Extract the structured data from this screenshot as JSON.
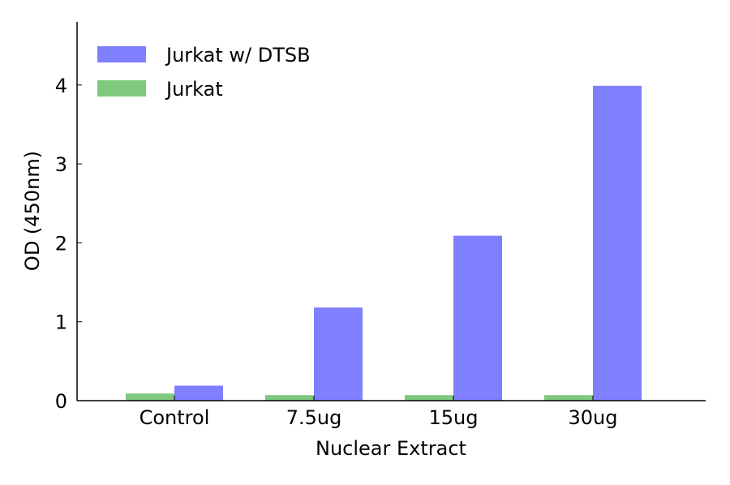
{
  "chart_data": {
    "type": "bar",
    "title": "",
    "xlabel": "Nuclear Extract",
    "ylabel": "OD (450nm)",
    "categories": [
      "Control",
      "7.5ug",
      "15ug",
      "30ug"
    ],
    "series": [
      {
        "name": "Jurkat",
        "color": "#7fc97f",
        "values": [
          0.09,
          0.07,
          0.07,
          0.07
        ]
      },
      {
        "name": "Jurkat w/ DTSB",
        "color": "#7f7fff",
        "values": [
          0.19,
          1.18,
          2.09,
          3.99
        ]
      }
    ],
    "ylim": [
      0,
      4.8
    ],
    "yticks": [
      "0",
      "1",
      "2",
      "3",
      "4"
    ],
    "legend": {
      "placement": "top-left",
      "entries": [
        "Jurkat w/ DTSB",
        "Jurkat"
      ]
    },
    "grid": false
  }
}
